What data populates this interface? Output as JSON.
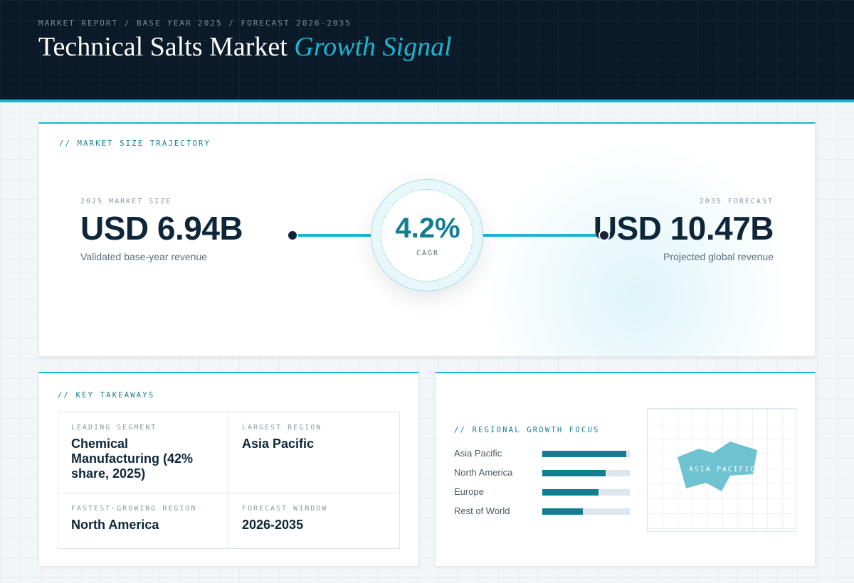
{
  "header": {
    "breadcrumb": "MARKET REPORT / BASE YEAR 2025 / FORECAST 2026-2035",
    "title_main": "Technical Salts Market",
    "title_accent": "Growth Signal"
  },
  "trajectory": {
    "section_label": "// MARKET SIZE TRAJECTORY",
    "base": {
      "caption": "2025 MARKET SIZE",
      "value": "USD 6.94B",
      "description": "Validated base-year revenue"
    },
    "forecast": {
      "caption": "2035 FORECAST",
      "value": "USD 10.47B",
      "description": "Projected global revenue"
    },
    "cagr": {
      "value": "4.2%",
      "label": "CAGR"
    }
  },
  "takeaways": {
    "section_label": "// KEY TAKEAWAYS",
    "items": [
      {
        "label": "LEADING SEGMENT",
        "value": "Chemical Manufacturing (42% share, 2025)"
      },
      {
        "label": "LARGEST REGION",
        "value": "Asia Pacific"
      },
      {
        "label": "FASTEST-GROWING REGION",
        "value": "North America"
      },
      {
        "label": "FORECAST WINDOW",
        "value": "2026-2035"
      }
    ]
  },
  "regional": {
    "section_label": "// REGIONAL GROWTH FOCUS",
    "bars": [
      {
        "label": "Asia Pacific",
        "level": 0.96
      },
      {
        "label": "North America",
        "level": 0.72
      },
      {
        "label": "Europe",
        "level": 0.64
      },
      {
        "label": "Rest of World",
        "level": 0.46
      }
    ],
    "map_label": "ASIA PACIFIC",
    "map_color": "#6fc2d0"
  },
  "colors": {
    "header_bg": "#0a1a28",
    "accent": "#1ab6d1",
    "teal": "#137e90",
    "navy_text": "#0f2639"
  }
}
